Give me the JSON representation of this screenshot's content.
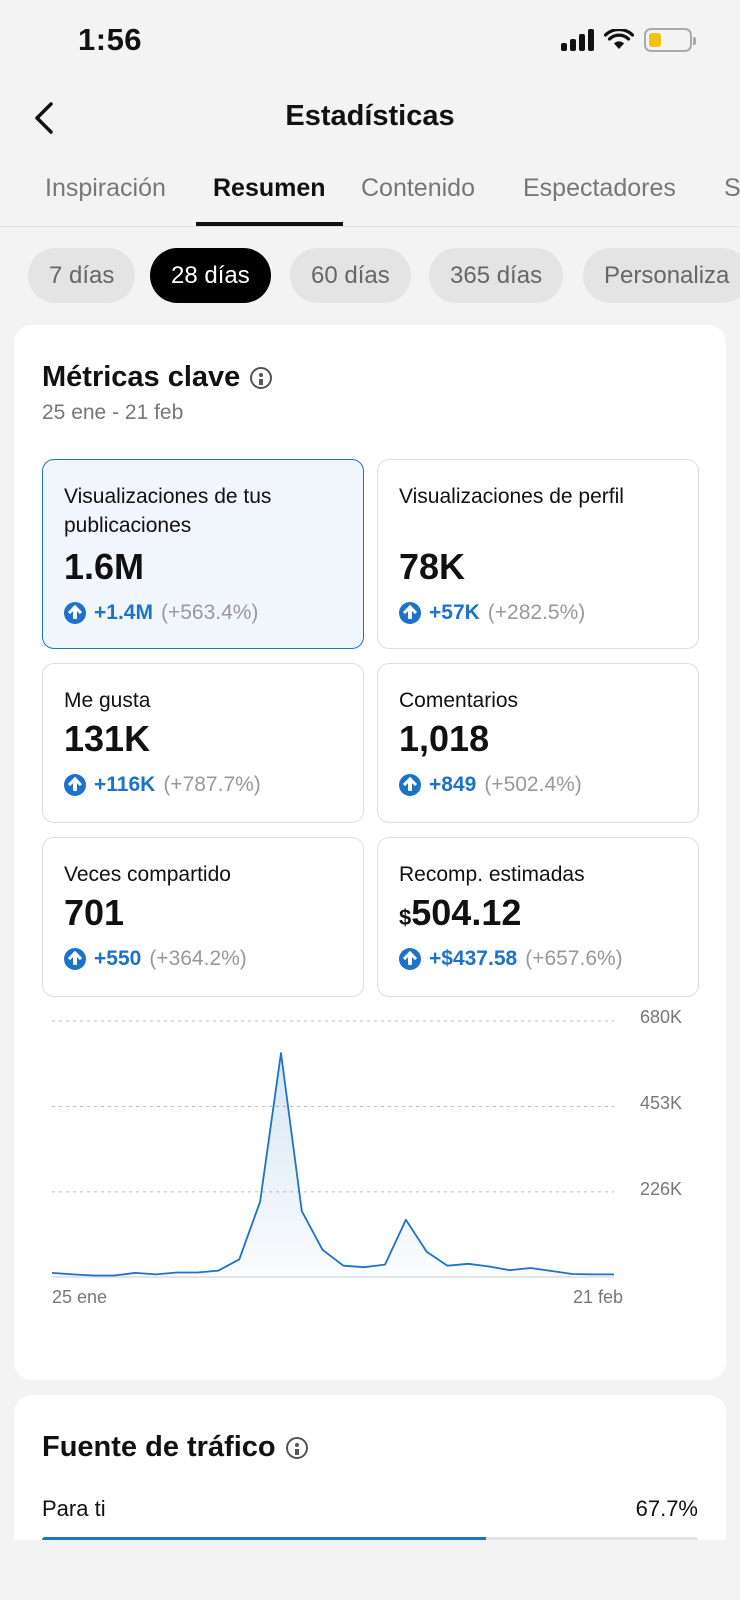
{
  "status": {
    "time": "1:56"
  },
  "header": {
    "title": "Estadísticas"
  },
  "tabs": [
    {
      "label": "Inspiración",
      "active": false
    },
    {
      "label": "Resumen",
      "active": true
    },
    {
      "label": "Contenido",
      "active": false
    },
    {
      "label": "Espectadores",
      "active": false
    },
    {
      "label": "S",
      "active": false
    }
  ],
  "ranges": [
    {
      "label": "7 días",
      "active": false
    },
    {
      "label": "28 días",
      "active": true
    },
    {
      "label": "60 días",
      "active": false
    },
    {
      "label": "365 días",
      "active": false
    },
    {
      "label": "Personaliza",
      "active": false
    }
  ],
  "key_metrics": {
    "title": "Métricas clave",
    "date_range": "25 ene - 21 feb",
    "items": [
      {
        "label": "Visualizaciones de tus publicaciones",
        "value": "1.6M",
        "currency": "",
        "delta": "+1.4M",
        "pct": "(+563.4%)",
        "selected": true
      },
      {
        "label": "Visualizaciones de perfil",
        "value": "78K",
        "currency": "",
        "delta": "+57K",
        "pct": "(+282.5%)",
        "selected": false
      },
      {
        "label": "Me gusta",
        "value": "131K",
        "currency": "",
        "delta": "+116K",
        "pct": "(+787.7%)",
        "selected": false
      },
      {
        "label": "Comentarios",
        "value": "1,018",
        "currency": "",
        "delta": "+849",
        "pct": "(+502.4%)",
        "selected": false
      },
      {
        "label": "Veces compartido",
        "value": "701",
        "currency": "",
        "delta": "+550",
        "pct": "(+364.2%)",
        "selected": false
      },
      {
        "label": "Recomp. estimadas",
        "value": "504.12",
        "currency": "$",
        "delta": "+$437.58",
        "pct": "(+657.6%)",
        "selected": false
      }
    ]
  },
  "chart_data": {
    "type": "area",
    "x_start_label": "25 ene",
    "x_end_label": "21 feb",
    "y_ticks": [
      "226K",
      "453K",
      "680K"
    ],
    "y_tick_values": [
      226000,
      453000,
      680000
    ],
    "ylim": [
      0,
      680000
    ],
    "color": "#1d72c9",
    "values": [
      11000,
      7000,
      4000,
      4000,
      11000,
      7000,
      12000,
      12000,
      17000,
      47000,
      200000,
      595000,
      175000,
      72000,
      30000,
      26000,
      33000,
      152000,
      67000,
      30000,
      35000,
      28000,
      18000,
      24000,
      16000,
      8000,
      7000,
      7000
    ]
  },
  "traffic": {
    "title": "Fuente de tráfico",
    "items": [
      {
        "label": "Para ti",
        "pct_label": "67.7%",
        "fraction": 0.677
      }
    ]
  }
}
